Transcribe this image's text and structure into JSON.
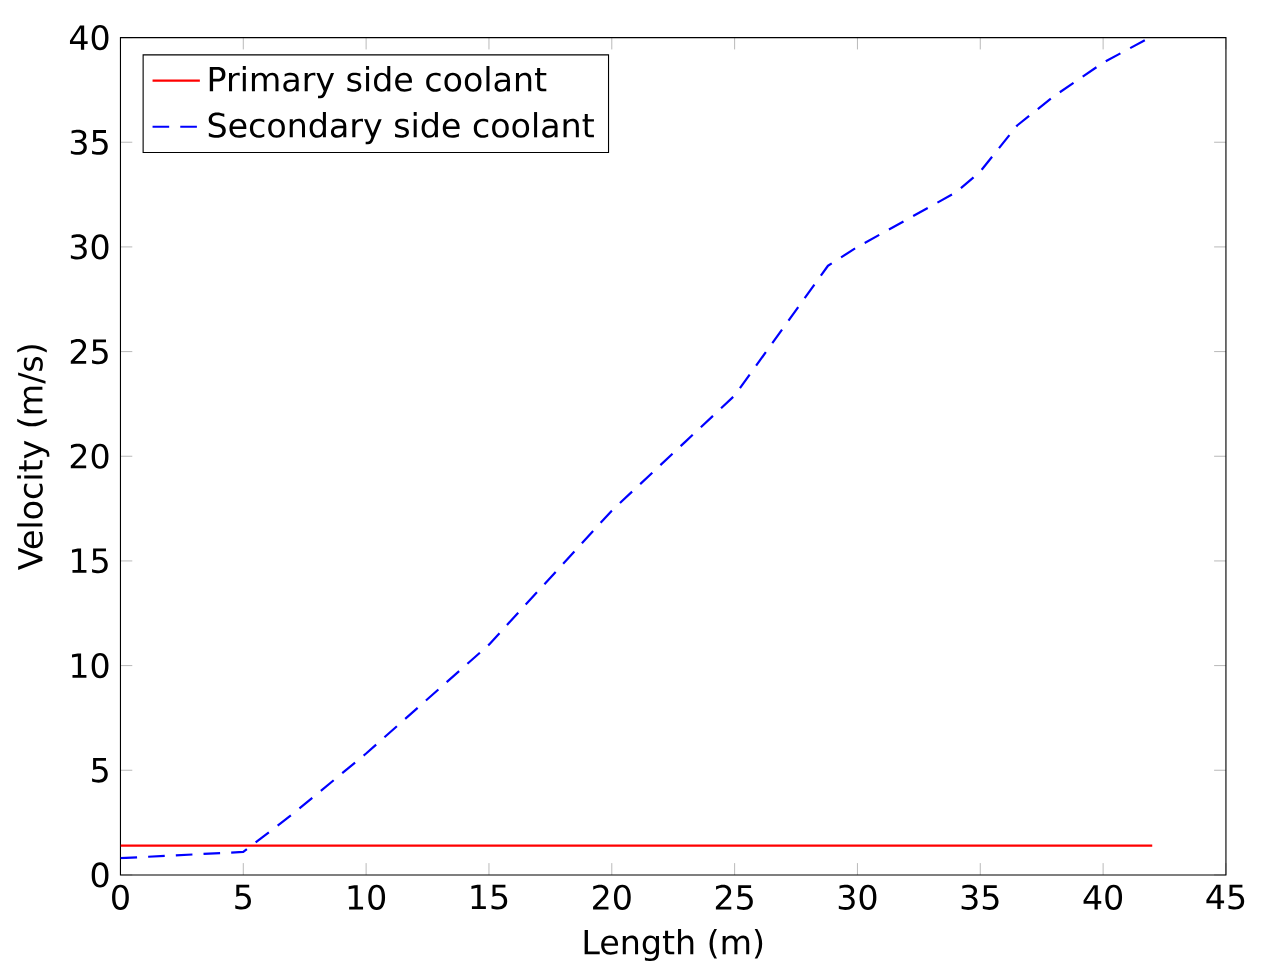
{
  "chart_data": {
    "type": "line",
    "xlabel": "Length (m)",
    "ylabel": "Velocity (m/s)",
    "xlim": [
      0,
      45
    ],
    "ylim": [
      0,
      40
    ],
    "xticks": [
      0,
      5,
      10,
      15,
      20,
      25,
      30,
      35,
      40,
      45
    ],
    "yticks": [
      0,
      5,
      10,
      15,
      20,
      25,
      30,
      35,
      40
    ],
    "grid": false,
    "legend": "top left",
    "series": [
      {
        "name": "Primary side coolant",
        "color": "#ff0000",
        "line_style": "solid",
        "x": [
          0,
          42
        ],
        "values": [
          1.4,
          1.4
        ]
      },
      {
        "name": "Secondary side coolant",
        "color": "#0000ff",
        "line_style": "dashed",
        "x": [
          0,
          5,
          7,
          10,
          15,
          20,
          23,
          25,
          28.8,
          30,
          34,
          35,
          36.5,
          38,
          40,
          41.9
        ],
        "values": [
          0.8,
          1.1,
          2.9,
          5.8,
          11.0,
          17.4,
          20.7,
          22.9,
          29.1,
          30.0,
          32.6,
          33.6,
          35.8,
          37.2,
          38.8,
          40.0
        ]
      }
    ]
  }
}
